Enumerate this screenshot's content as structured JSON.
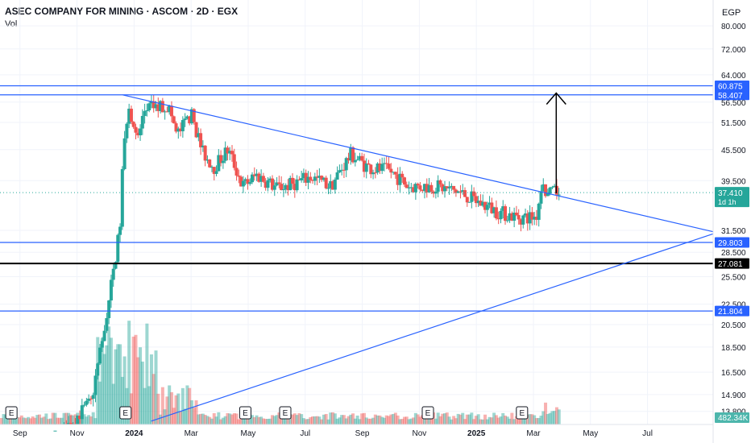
{
  "header": {
    "title": "ASEC COMPANY FOR MINING · ASCOM · 2D · EGX",
    "volume_label": "Vol",
    "currency": "EGP"
  },
  "chart_data": {
    "type": "candlestick",
    "symbol": "ASCOM",
    "timeframe": "2D",
    "exchange": "EGX",
    "x_ticks": [
      "Sep",
      "Nov",
      "2024",
      "Mar",
      "May",
      "Jul",
      "Sep",
      "Nov",
      "2025",
      "Mar",
      "May",
      "Jul"
    ],
    "x_tick_values": [
      0,
      2,
      4,
      6,
      8,
      10,
      12,
      14,
      16,
      18,
      20,
      22
    ],
    "x_range": [
      -0.7,
      24.3
    ],
    "y_ticks": [
      "80.000",
      "72.000",
      "64.000",
      "56.500",
      "51.500",
      "45.500",
      "39.500",
      "31.500",
      "28.500",
      "25.500",
      "22.500",
      "20.500",
      "18.500",
      "16.500",
      "14.900",
      "13.800"
    ],
    "y_range": [
      13.0,
      90.0
    ],
    "y_scale": "log",
    "levels": [
      {
        "value": 60.875,
        "label": "60.875",
        "color": "#2962ff"
      },
      {
        "value": 58.407,
        "label": "58.407",
        "color": "#2962ff"
      },
      {
        "value": 29.803,
        "label": "29.803",
        "color": "#2962ff"
      },
      {
        "value": 27.081,
        "label": "27.081",
        "color": "#000000"
      },
      {
        "value": 21.804,
        "label": "21.804",
        "color": "#2962ff"
      }
    ],
    "last_price": {
      "value": 37.41,
      "label": "37.410",
      "countdown": "1d 1h"
    },
    "volume_last": "482.34K",
    "trendlines": [
      {
        "from": [
          3.6,
          58.4
        ],
        "to": [
          24.3,
          31.3
        ],
        "color": "#2962ff"
      },
      {
        "from": [
          4.6,
          13.2
        ],
        "to": [
          24.3,
          31.0
        ],
        "color": "#2962ff"
      }
    ],
    "target_arrow": {
      "x": 18.8,
      "from": 37.3,
      "to": 58.9
    },
    "earnings_markers": [
      -0.3,
      3.7,
      7.9,
      9.3,
      14.3,
      17.6
    ],
    "earnings_label": "E",
    "colors": {
      "up": "#26a69a",
      "down": "#ef5350",
      "accent": "#2962ff"
    }
  }
}
